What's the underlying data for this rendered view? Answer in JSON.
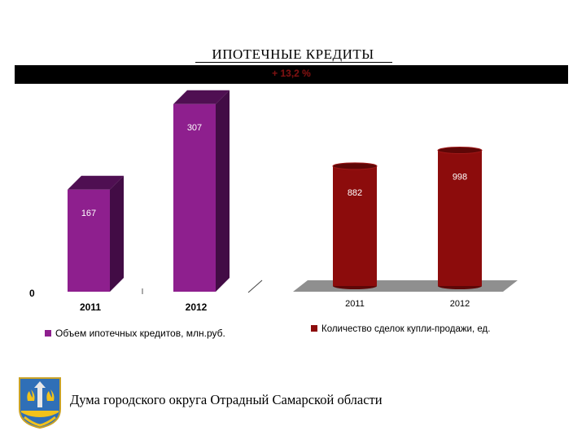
{
  "title": "ИПОТЕЧНЫЕ КРЕДИТЫ",
  "growth_label": "+ 13,2 %",
  "footer": "Дума городского округа Отрадный Самарской области",
  "colors": {
    "purple": "#8e1f8e",
    "purple_dark": "#4f0f52",
    "purple_side": "#420c45",
    "red": "#8c0c0c",
    "red_dark": "#5e0707",
    "floor": "#8f8f8f"
  },
  "chart_data": [
    {
      "type": "bar",
      "categories": [
        "2011",
        "2012"
      ],
      "series": [
        {
          "name": "Объем ипотечных кредитов, млн.руб.",
          "values": [
            167,
            307
          ]
        }
      ],
      "value_labels": [
        "167",
        "307"
      ],
      "axis_zero_label": "0",
      "legend": "bottom"
    },
    {
      "type": "bar",
      "categories": [
        "2011",
        "2012"
      ],
      "series": [
        {
          "name": "Количество сделок купли-продажи, ед.",
          "values": [
            882,
            998
          ]
        }
      ],
      "value_labels": [
        "882",
        "998"
      ],
      "legend": "bottom"
    }
  ]
}
